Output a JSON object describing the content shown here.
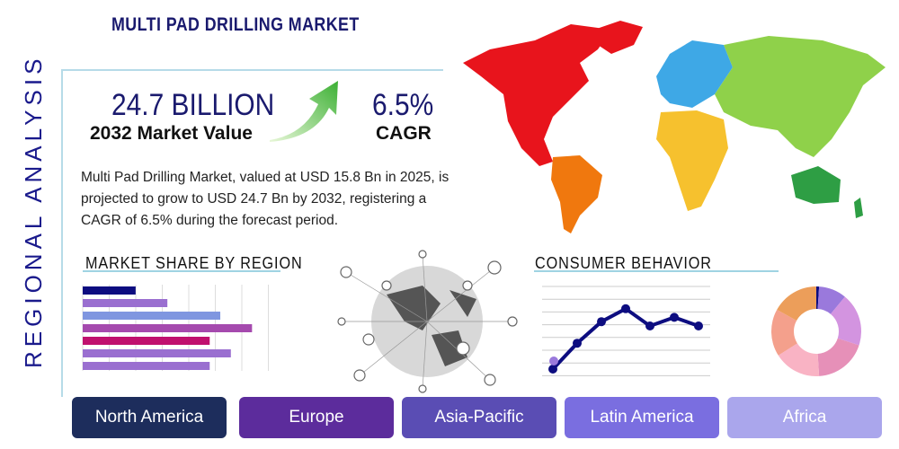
{
  "title": "MULTI PAD DRILLING MARKET",
  "side_title": "REGIONAL ANALYSIS",
  "market_value": "24.7 BILLION",
  "market_value_label": "2032 Market Value",
  "cagr": "6.5%",
  "cagr_label": "CAGR",
  "description": "Multi Pad Drilling Market, valued at USD 15.8 Bn in 2025, is projected to grow to USD 24.7 Bn by 2032, registering a CAGR of 6.5% during the forecast period.",
  "market_share_title": "MARKET SHARE BY REGION",
  "consumer_title": "CONSUMER BEHAVIOR",
  "bar_chart": {
    "values": [
      2,
      3.2,
      5.2,
      6.4,
      4.8,
      5.6,
      4.8
    ],
    "max": 7,
    "colors": [
      "#0d0d80",
      "#9a6fd0",
      "#7f96e0",
      "#a54aae",
      "#c0106e",
      "#9a6fd0",
      "#9a6fd0"
    ]
  },
  "line_chart": {
    "values": [
      1,
      3.4,
      5.4,
      6.6,
      5,
      5.8,
      5
    ]
  },
  "donut": {
    "values": [
      1,
      10,
      19,
      19,
      17,
      17,
      17
    ],
    "colors": [
      "#0d0d80",
      "#9a79dc",
      "#d394e0",
      "#e690b8",
      "#f9b3c4",
      "#f4a08c",
      "#ec9e5a"
    ]
  },
  "regions": [
    {
      "label": "North America",
      "color": "#1d2d5c"
    },
    {
      "label": "Europe",
      "color": "#5c2c9c"
    },
    {
      "label": "Asia-Pacific",
      "color": "#5a4db4"
    },
    {
      "label": "Latin America",
      "color": "#7a6ee0"
    },
    {
      "label": "Africa",
      "color": "#aaa6ec"
    }
  ]
}
